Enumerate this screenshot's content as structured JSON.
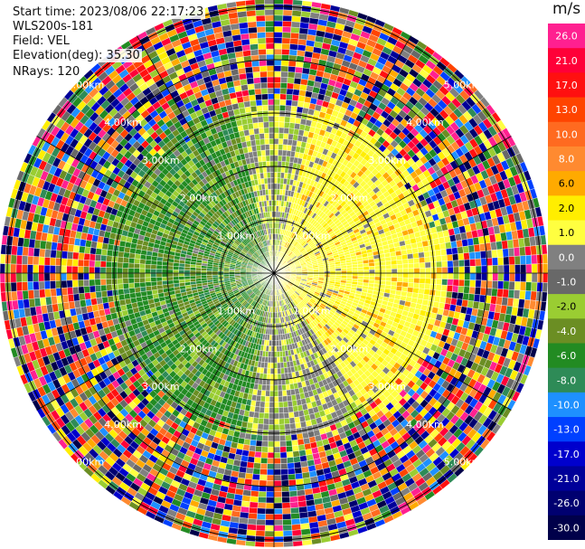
{
  "header": {
    "start_time": "Start time: 2023/08/06 22:17:23",
    "station": "WLS200s-181",
    "field": "Field: VEL",
    "elevation": "Elevation(deg): 35.30",
    "nrays": "NRays: 120"
  },
  "chart_data": {
    "type": "ppi",
    "field": "VEL",
    "elevation_deg": 35.3,
    "n_rays": 120,
    "range_ring_labels": [
      "1.00km",
      "2.00km",
      "3.00km",
      "4.00km",
      "5.00km"
    ],
    "ring_ranges_km": [
      1,
      2,
      3,
      4,
      5
    ],
    "colorbar": {
      "unit": "m/s",
      "ticks": [
        26.0,
        21.0,
        17.0,
        13.0,
        10.0,
        8.0,
        6.0,
        2.0,
        1.0,
        0.0,
        -1.0,
        -2.0,
        -4.0,
        -6.0,
        -8.0,
        -10.0,
        -13.0,
        -17.0,
        -21.0,
        -26.0,
        -30.0
      ],
      "tick_labels": [
        "26.0",
        "21.0",
        "17.0",
        "13.0",
        "10.0",
        "8.0",
        "6.0",
        "2.0",
        "1.0",
        "0.0",
        "-1.0",
        "-2.0",
        "-4.0",
        "-6.0",
        "-8.0",
        "-10.0",
        "-13.0",
        "-17.0",
        "-21.0",
        "-26.0",
        "-30.0"
      ],
      "colors": [
        "#ff2090",
        "#ff0038",
        "#ff1010",
        "#ff4400",
        "#ff6a20",
        "#ff8a30",
        "#ffaa00",
        "#ffee00",
        "#ffff40",
        "#808080",
        "#686868",
        "#9acd32",
        "#6b8e23",
        "#228b22",
        "#2e8b57",
        "#1e90ff",
        "#0040ff",
        "#0000cd",
        "#000099",
        "#000070",
        "#00004a"
      ]
    }
  }
}
